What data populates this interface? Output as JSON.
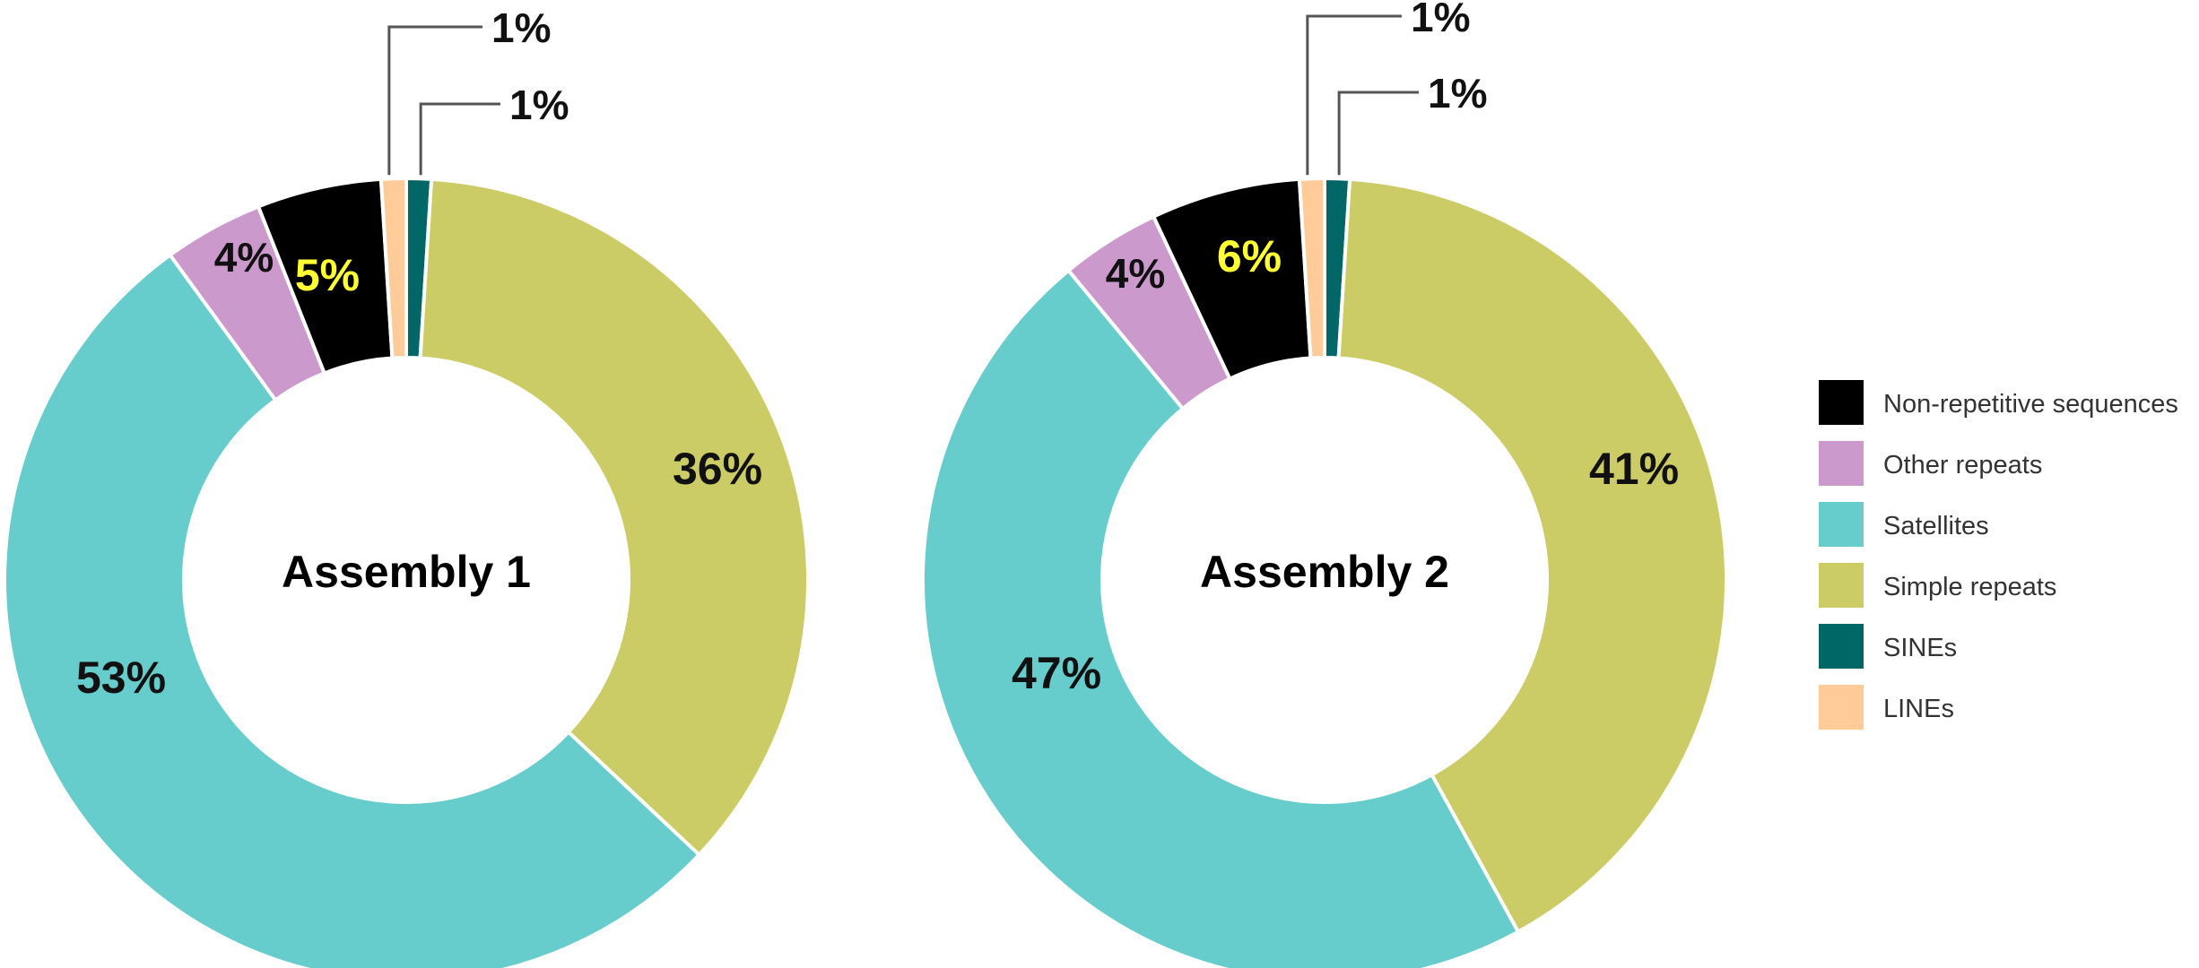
{
  "chart_data": [
    {
      "type": "pie",
      "title": "Assembly 1",
      "categories": [
        "Non-repetitive sequences",
        "Other repeats",
        "Satellites",
        "Simple repeats",
        "SINEs",
        "LINEs"
      ],
      "values": [
        5,
        4,
        53,
        36,
        1,
        1
      ],
      "labels": [
        "5%",
        "4%",
        "53%",
        "36%",
        "1%",
        "1%"
      ]
    },
    {
      "type": "pie",
      "title": "Assembly 2",
      "categories": [
        "Non-repetitive sequences",
        "Other repeats",
        "Satellites",
        "Simple repeats",
        "SINEs",
        "LINEs"
      ],
      "values": [
        6,
        4,
        47,
        41,
        1,
        1
      ],
      "labels": [
        "6%",
        "4%",
        "47%",
        "41%",
        "1%",
        "1%"
      ]
    }
  ],
  "legend": {
    "placement": "right",
    "items": [
      {
        "label": "Non-repetitive sequences",
        "color": "#000000"
      },
      {
        "label": "Other repeats",
        "color": "#cc99cc"
      },
      {
        "label": "Satellites",
        "color": "#66cccc"
      },
      {
        "label": "Simple repeats",
        "color": "#cccc66"
      },
      {
        "label": "SINEs",
        "color": "#006666"
      },
      {
        "label": "LINEs",
        "color": "#ffcc99"
      }
    ]
  },
  "colors": {
    "Non-repetitive sequences": "#000000",
    "Other repeats": "#cc99cc",
    "Satellites": "#66cccc",
    "Simple repeats": "#cccc66",
    "SINEs": "#006666",
    "LINEs": "#ffcc99",
    "highlight_text": "#ffff33"
  }
}
